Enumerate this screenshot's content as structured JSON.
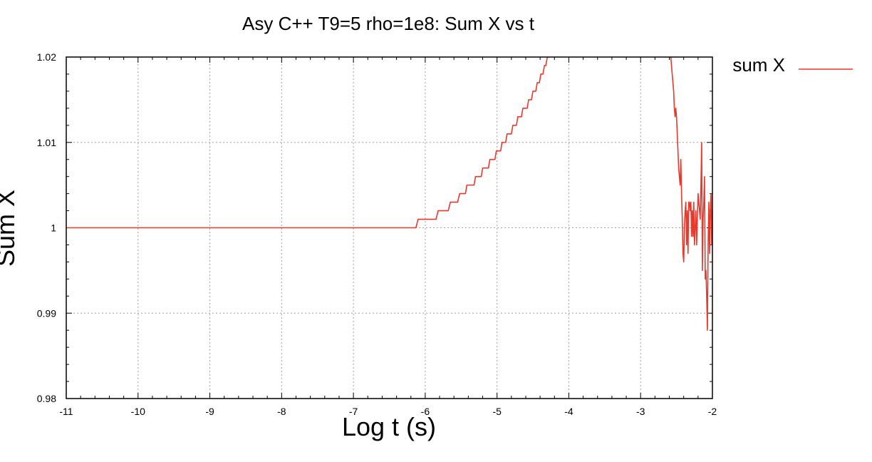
{
  "chart_data": {
    "type": "line",
    "title": "Asy C++ T9=5 rho=1e8: Sum X  vs t",
    "xlabel": "Log t (s)",
    "ylabel": "Sum X",
    "xlim": [
      -11,
      -2
    ],
    "ylim": [
      0.98,
      1.02
    ],
    "x_ticks": [
      -11,
      -10,
      -9,
      -8,
      -7,
      -6,
      -5,
      -4,
      -3,
      -2
    ],
    "x_tick_labels": [
      "-11",
      "-10",
      "-9",
      "-8",
      "-7",
      "-6",
      "-5",
      "-4",
      "-3",
      "-2"
    ],
    "y_ticks": [
      0.98,
      0.99,
      1.0,
      1.01,
      1.02
    ],
    "y_tick_labels": [
      "0.98",
      "0.99",
      "1",
      "1.01",
      "1.02"
    ],
    "grid": true,
    "legend_position": "top-right outside",
    "series": [
      {
        "name": "sum X",
        "color": "#e8392d",
        "points": [
          [
            -11.0,
            1.0
          ],
          [
            -6.13,
            1.0
          ],
          [
            -6.1,
            1.001
          ],
          [
            -5.85,
            1.001
          ],
          [
            -5.82,
            1.002
          ],
          [
            -5.68,
            1.002
          ],
          [
            -5.65,
            1.003
          ],
          [
            -5.55,
            1.003
          ],
          [
            -5.52,
            1.004
          ],
          [
            -5.44,
            1.004
          ],
          [
            -5.42,
            1.005
          ],
          [
            -5.32,
            1.005
          ],
          [
            -5.3,
            1.006
          ],
          [
            -5.22,
            1.006
          ],
          [
            -5.2,
            1.007
          ],
          [
            -5.12,
            1.007
          ],
          [
            -5.1,
            1.008
          ],
          [
            -5.03,
            1.008
          ],
          [
            -5.01,
            1.009
          ],
          [
            -4.95,
            1.009
          ],
          [
            -4.93,
            1.01
          ],
          [
            -4.88,
            1.01
          ],
          [
            -4.86,
            1.011
          ],
          [
            -4.8,
            1.011
          ],
          [
            -4.78,
            1.012
          ],
          [
            -4.73,
            1.012
          ],
          [
            -4.71,
            1.013
          ],
          [
            -4.66,
            1.013
          ],
          [
            -4.64,
            1.014
          ],
          [
            -4.58,
            1.014
          ],
          [
            -4.56,
            1.015
          ],
          [
            -4.52,
            1.015
          ],
          [
            -4.5,
            1.016
          ],
          [
            -4.46,
            1.016
          ],
          [
            -4.44,
            1.017
          ],
          [
            -4.41,
            1.017
          ],
          [
            -4.39,
            1.018
          ],
          [
            -4.36,
            1.018
          ],
          [
            -4.34,
            1.019
          ],
          [
            -4.32,
            1.019
          ],
          [
            -4.3,
            1.02
          ],
          [
            -4.28,
            1.02
          ],
          [
            -4.27,
            1.0205
          ],
          null,
          [
            -2.6,
            1.0205
          ],
          [
            -2.58,
            1.02
          ],
          [
            -2.56,
            1.018
          ],
          [
            -2.54,
            1.016
          ],
          [
            -2.53,
            1.014
          ],
          [
            -2.52,
            1.013
          ],
          [
            -2.51,
            1.014
          ],
          [
            -2.5,
            1.013
          ],
          [
            -2.49,
            1.011
          ],
          [
            -2.48,
            1.009
          ],
          [
            -2.47,
            1.007
          ],
          [
            -2.46,
            1.006
          ],
          [
            -2.45,
            1.005
          ],
          [
            -2.44,
            1.008
          ],
          [
            -2.43,
            1.004
          ],
          [
            -2.42,
            1.001
          ],
          [
            -2.41,
            0.997
          ],
          [
            -2.4,
            0.996
          ],
          [
            -2.39,
            1.0
          ],
          [
            -2.38,
            1.002
          ],
          [
            -2.37,
            1.003
          ],
          [
            -2.36,
            0.998
          ],
          [
            -2.35,
            1.002
          ],
          [
            -2.34,
            0.997
          ],
          [
            -2.33,
            1.003
          ],
          [
            -2.32,
            1.003
          ],
          [
            -2.31,
            1.002
          ],
          [
            -2.3,
            1.003
          ],
          [
            -2.29,
            0.999
          ],
          [
            -2.28,
            1.002
          ],
          [
            -2.27,
            0.999
          ],
          [
            -2.26,
            1.003
          ],
          [
            -2.25,
            0.998
          ],
          [
            -2.24,
            1.0
          ],
          [
            -2.23,
            1.002
          ],
          [
            -2.22,
            0.998
          ],
          [
            -2.21,
            1.001
          ],
          [
            -2.2,
            1.004
          ],
          [
            -2.19,
            1.003
          ],
          [
            -2.18,
            1.002
          ],
          [
            -2.17,
            1.001
          ],
          [
            -2.16,
            1.005
          ],
          [
            -2.15,
            1.01
          ],
          [
            -2.14,
            0.995
          ],
          [
            -2.13,
            1.001
          ],
          [
            -2.12,
            1.003
          ],
          [
            -2.11,
            1.006
          ],
          [
            -2.1,
            0.994
          ],
          [
            -2.09,
            0.995
          ],
          [
            -2.08,
            0.992
          ],
          [
            -2.07,
            0.988
          ],
          [
            -2.06,
            0.998
          ],
          [
            -2.05,
            1.003
          ],
          [
            -2.04,
            0.997
          ],
          [
            -2.03,
            1.002
          ],
          [
            -2.02,
            1.004
          ],
          [
            -2.01,
            0.998
          ],
          [
            -2.0,
            1.002
          ]
        ]
      }
    ]
  }
}
